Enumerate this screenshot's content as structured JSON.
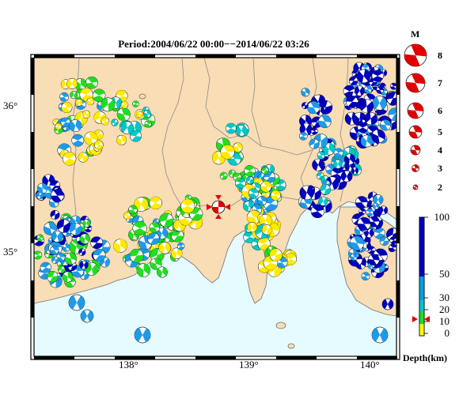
{
  "title": "Period:2004/06/22 00:00−−2014/06/22 03:26",
  "axes": {
    "lat_labels": [
      {
        "text": "36°",
        "lat": 36
      },
      {
        "text": "35°",
        "lat": 35
      }
    ],
    "lon_labels": [
      {
        "text": "138°",
        "lon": 138
      },
      {
        "text": "139°",
        "lon": 139
      },
      {
        "text": "140°",
        "lon": 140
      }
    ],
    "lon_range": [
      137.2,
      140.3
    ],
    "lat_range": [
      34.15,
      36.35
    ]
  },
  "magnitude_legend": {
    "title": "M",
    "items": [
      "8",
      "7",
      "6",
      "5",
      "4",
      "3",
      "2"
    ],
    "color": "#e00000"
  },
  "depth_legend": {
    "title": "Depth(km)",
    "ticks": [
      "100",
      "50",
      "30",
      "20",
      "10",
      "0"
    ],
    "colors": {
      "shallow": "#ffff00",
      "mid1": "#00c8c8",
      "mid2": "#00a0e6",
      "deep": "#0000c0"
    }
  },
  "colors": {
    "land": "#f9ddb5",
    "sea": "#e5fbff",
    "frame": "#000000",
    "boundary": "#7a7a7a",
    "yellow": "#ffea00",
    "green": "#22dd22",
    "cyan": "#00c8c8",
    "skyblue": "#1e9be8",
    "navy": "#0000bb",
    "red": "#e00000"
  }
}
